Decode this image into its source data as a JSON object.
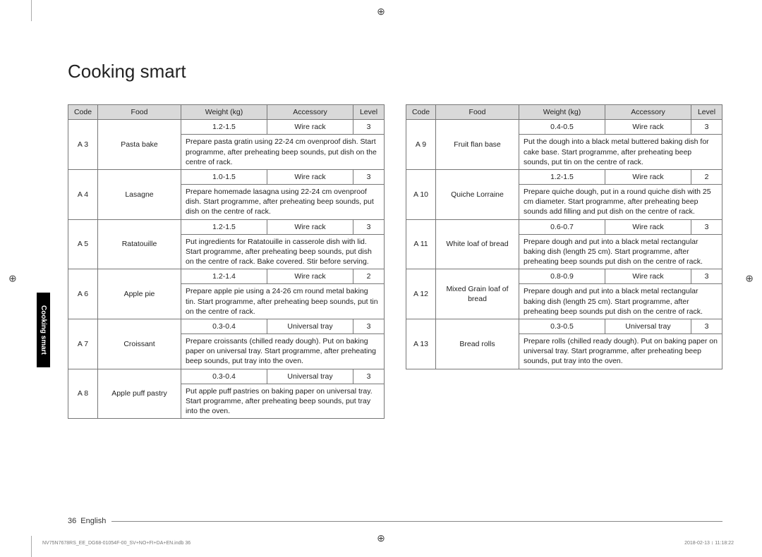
{
  "registration_mark": "⊕",
  "title": "Cooking smart",
  "side_tab": "Cooking smart",
  "headers": [
    "Code",
    "Food",
    "Weight (kg)",
    "Accessory",
    "Level"
  ],
  "left_rows": [
    {
      "code": "A 3",
      "food": "Pasta bake",
      "weight": "1.2-1.5",
      "accessory": "Wire rack",
      "level": "3",
      "instr": "Prepare pasta gratin using 22-24 cm ovenproof dish. Start programme, after preheating beep sounds, put dish on the centre of rack."
    },
    {
      "code": "A 4",
      "food": "Lasagne",
      "weight": "1.0-1.5",
      "accessory": "Wire rack",
      "level": "3",
      "instr": "Prepare homemade lasagna using 22-24 cm ovenproof dish. Start programme, after preheating beep sounds, put dish on the centre of rack."
    },
    {
      "code": "A 5",
      "food": "Ratatouille",
      "weight": "1.2-1.5",
      "accessory": "Wire rack",
      "level": "3",
      "instr": "Put ingredients for Ratatouille in casserole dish with lid. Start programme, after preheating beep sounds, put dish on the centre of rack. Bake covered. Stir before serving."
    },
    {
      "code": "A 6",
      "food": "Apple pie",
      "weight": "1.2-1.4",
      "accessory": "Wire rack",
      "level": "2",
      "instr": "Prepare apple pie using a 24-26 cm round metal baking tin. Start programme, after preheating beep sounds, put tin on the centre of rack."
    },
    {
      "code": "A 7",
      "food": "Croissant",
      "weight": "0.3-0.4",
      "accessory": "Universal tray",
      "level": "3",
      "instr": "Prepare croissants (chilled ready dough). Put on baking paper on universal tray. Start programme, after preheating beep sounds, put tray into the oven."
    },
    {
      "code": "A 8",
      "food": "Apple puff pastry",
      "weight": "0.3-0.4",
      "accessory": "Universal tray",
      "level": "3",
      "instr": "Put apple puff pastries on baking paper on universal tray. Start programme, after preheating beep sounds, put tray into the oven."
    }
  ],
  "right_rows": [
    {
      "code": "A 9",
      "food": "Fruit flan base",
      "weight": "0.4-0.5",
      "accessory": "Wire rack",
      "level": "3",
      "instr": "Put the dough into a black metal buttered baking dish for cake base. Start programme, after preheating beep sounds, put tin on the centre of rack."
    },
    {
      "code": "A 10",
      "food": "Quiche Lorraine",
      "weight": "1.2-1.5",
      "accessory": "Wire rack",
      "level": "2",
      "instr": "Prepare quiche dough, put in a round quiche dish with 25 cm diameter. Start programme, after preheating beep sounds add filling and put dish on the centre of rack."
    },
    {
      "code": "A 11",
      "food": "White loaf of bread",
      "weight": "0.6-0.7",
      "accessory": "Wire rack",
      "level": "3",
      "instr": "Prepare dough and put into a black metal rectangular baking dish (length 25 cm). Start programme, after preheating beep sounds put dish on the centre of rack."
    },
    {
      "code": "A 12",
      "food": "Mixed Grain loaf of bread",
      "weight": "0.8-0.9",
      "accessory": "Wire rack",
      "level": "3",
      "instr": "Prepare dough and put into a black metal rectangular baking dish (length 25 cm). Start programme, after preheating beep sounds put dish on the centre of rack."
    },
    {
      "code": "A 13",
      "food": "Bread rolls",
      "weight": "0.3-0.5",
      "accessory": "Universal tray",
      "level": "3",
      "instr": "Prepare rolls (chilled ready dough). Put on baking paper on universal tray. Start programme, after preheating beep sounds, put tray into the oven."
    }
  ],
  "footer": {
    "page": "36",
    "lang": "English"
  },
  "tiny": {
    "left": "NV75N7678RS_EE_DG68-01054F-00_SV+NO+FI+DA+EN.indb   36",
    "right": "2018-02-13   ↕ 11:18:22"
  }
}
